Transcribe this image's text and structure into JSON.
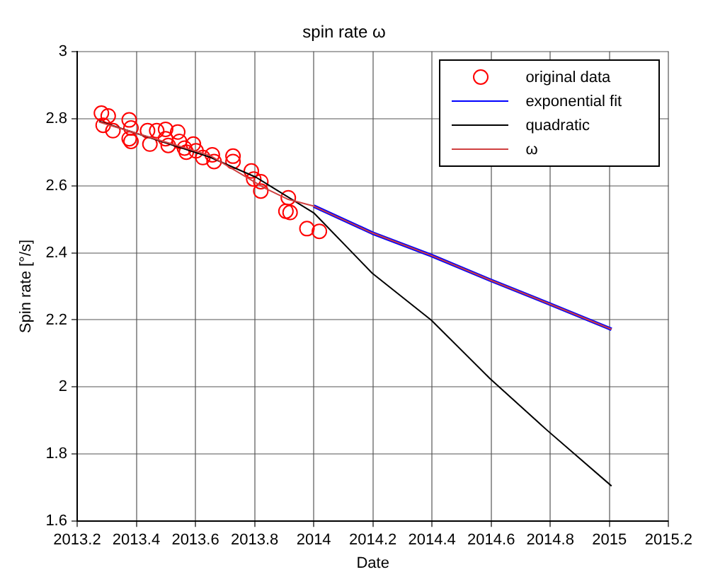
{
  "chart_data": {
    "type": "scatter",
    "title": "spin rate ω",
    "xlabel": "Date",
    "ylabel": "Spin rate [°/s]",
    "xlim": [
      2013.2,
      2015.2
    ],
    "xticks": [
      2013.2,
      2013.4,
      2013.6,
      2013.8,
      2014,
      2014.2,
      2014.4,
      2014.6,
      2014.8,
      2015,
      2015.2
    ],
    "ylim": [
      1.6,
      3
    ],
    "yticks": [
      1.6,
      1.8,
      2,
      2.2,
      2.4,
      2.6,
      2.8,
      3
    ],
    "grid": true,
    "legend": "top right",
    "series": [
      {
        "name": "original data",
        "type": "scatter",
        "marker": "circle",
        "color": "#ff0000",
        "x": [
          2013.282,
          2013.305,
          2013.288,
          2013.321,
          2013.376,
          2013.382,
          2013.376,
          2013.382,
          2013.438,
          2013.469,
          2013.499,
          2013.446,
          2013.499,
          2013.508,
          2013.54,
          2013.546,
          2013.563,
          2013.569,
          2013.593,
          2013.602,
          2013.625,
          2013.657,
          2013.663,
          2013.727,
          2013.727,
          2013.789,
          2013.797,
          2013.821,
          2013.821,
          2013.914,
          2013.906,
          2013.92,
          2013.977,
          2014.019
        ],
        "values": [
          2.816,
          2.808,
          2.78,
          2.764,
          2.796,
          2.772,
          2.74,
          2.732,
          2.764,
          2.764,
          2.768,
          2.724,
          2.74,
          2.72,
          2.76,
          2.732,
          2.712,
          2.7,
          2.724,
          2.704,
          2.684,
          2.692,
          2.672,
          2.688,
          2.672,
          2.644,
          2.62,
          2.612,
          2.584,
          2.564,
          2.524,
          2.52,
          2.472,
          2.464
        ]
      },
      {
        "name": "exponential fit",
        "type": "line",
        "marker": "none",
        "line_style": "solid",
        "color": "#0000ff",
        "x": [
          2014,
          2014.198,
          2014.398,
          2014.596,
          2014.788,
          2015.007
        ],
        "values": [
          2.539,
          2.459,
          2.392,
          2.319,
          2.251,
          2.172
        ]
      },
      {
        "name": "quadratic",
        "type": "line",
        "marker": "none",
        "line_style": "solid",
        "color": "#000000",
        "x": [
          2013.274,
          2013.649,
          2013.805,
          2014,
          2014.198,
          2014.398,
          2014.596,
          2014.788,
          2015.007
        ],
        "values": [
          2.792,
          2.685,
          2.625,
          2.519,
          2.339,
          2.199,
          2.025,
          1.872,
          1.705
        ]
      },
      {
        "name": "ω",
        "type": "line",
        "marker": "none",
        "line_style": "solid",
        "color": "#d04040",
        "x": [
          2013.274,
          2013.649,
          2013.836,
          2013.914,
          2014,
          2014.198,
          2014.398,
          2014.596,
          2014.788,
          2015.007
        ],
        "values": [
          2.79,
          2.69,
          2.592,
          2.559,
          2.539,
          2.459,
          2.392,
          2.319,
          2.251,
          2.172
        ]
      }
    ]
  }
}
